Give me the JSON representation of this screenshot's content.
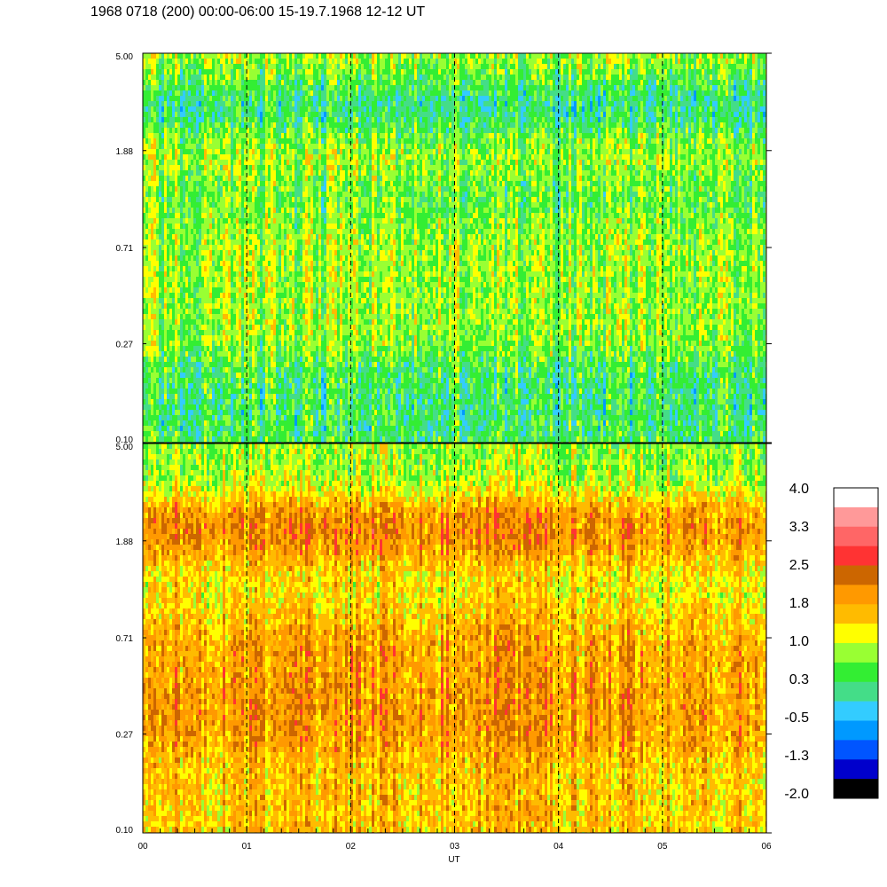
{
  "title": "1968 0718 (200) 00:00-06:00 15-19.7.1968  12-12 UT",
  "chart_data": {
    "type": "heatmap",
    "xlabel": "UT",
    "x_ticks": [
      "00",
      "01",
      "02",
      "03",
      "04",
      "05",
      "06"
    ],
    "x_range": [
      0,
      6
    ],
    "y_scale": "log",
    "y_range": [
      0.1,
      5.0
    ],
    "y_ticks": [
      "5.00",
      "1.88",
      "0.71",
      "0.27",
      "0.10"
    ],
    "y_tick_values": [
      5.0,
      1.88,
      0.71,
      0.27,
      0.1
    ],
    "panels": [
      {
        "name": "upper",
        "base_level": 0.6,
        "bands": [
          {
            "y": 4.6,
            "level": 1.0
          },
          {
            "y": 3.0,
            "level": -0.4
          },
          {
            "y": 2.0,
            "level": 1.1
          },
          {
            "y": 1.2,
            "level": 0.4
          },
          {
            "y": 0.8,
            "level": 0.9
          },
          {
            "y": 0.4,
            "level": 0.8
          },
          {
            "y": 0.15,
            "level": 0.2
          }
        ]
      },
      {
        "name": "lower",
        "base_level": 1.5,
        "bands": [
          {
            "y": 4.2,
            "level": 0.7
          },
          {
            "y": 2.1,
            "level": 2.2
          },
          {
            "y": 1.2,
            "level": 1.2
          },
          {
            "y": 0.72,
            "level": 1.9
          },
          {
            "y": 0.35,
            "level": 2.0
          },
          {
            "y": 0.15,
            "level": 1.6
          }
        ]
      }
    ],
    "colorbar": {
      "labels": [
        "4.0",
        "3.3",
        "2.5",
        "1.8",
        "1.0",
        "0.3",
        "-0.5",
        "-1.3",
        "-2.0"
      ],
      "colors": [
        "#ffffff",
        "#ff9999",
        "#ff6666",
        "#ff3333",
        "#cc6600",
        "#ff9900",
        "#ffbb00",
        "#ffff00",
        "#99ff33",
        "#33ee33",
        "#44dd88",
        "#33ccff",
        "#0099ff",
        "#0055ff",
        "#0000cc",
        "#000000"
      ],
      "range": [
        -2.0,
        4.0
      ]
    },
    "grid": {
      "vertical_dashed": true
    }
  }
}
